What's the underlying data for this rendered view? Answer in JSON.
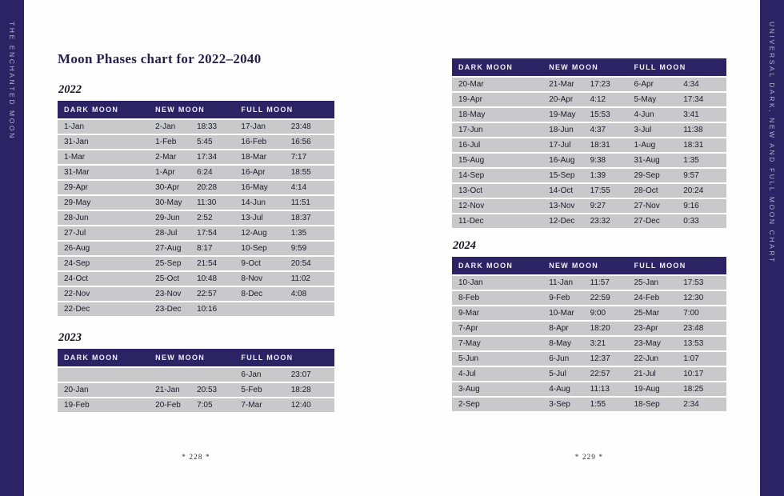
{
  "spines": {
    "left": "THE ENCHANTED MOON",
    "right": "UNIVERSAL DARK, NEW AND FULL MOON CHART"
  },
  "title": "Moon Phases chart for 2022–2040",
  "headers": {
    "dark": "DARK MOON",
    "new": "NEW MOON",
    "full": "FULL MOON"
  },
  "footers": {
    "left": "* 228 *",
    "right": "* 229 *"
  },
  "colors": {
    "navy": "#2b2363",
    "row_gray": "#c9c8ca",
    "ink": "#1c1c28"
  },
  "tables": [
    {
      "year": "2022",
      "rows": [
        [
          "1-Jan",
          "2-Jan",
          "18:33",
          "17-Jan",
          "23:48"
        ],
        [
          "31-Jan",
          "1-Feb",
          "5:45",
          "16-Feb",
          "16:56"
        ],
        [
          "1-Mar",
          "2-Mar",
          "17:34",
          "18-Mar",
          "7:17"
        ],
        [
          "31-Mar",
          "1-Apr",
          "6:24",
          "16-Apr",
          "18:55"
        ],
        [
          "29-Apr",
          "30-Apr",
          "20:28",
          "16-May",
          "4:14"
        ],
        [
          "29-May",
          "30-May",
          "11:30",
          "14-Jun",
          "11:51"
        ],
        [
          "28-Jun",
          "29-Jun",
          "2:52",
          "13-Jul",
          "18:37"
        ],
        [
          "27-Jul",
          "28-Jul",
          "17:54",
          "12-Aug",
          "1:35"
        ],
        [
          "26-Aug",
          "27-Aug",
          "8:17",
          "10-Sep",
          "9:59"
        ],
        [
          "24-Sep",
          "25-Sep",
          "21:54",
          "9-Oct",
          "20:54"
        ],
        [
          "24-Oct",
          "25-Oct",
          "10:48",
          "8-Nov",
          "11:02"
        ],
        [
          "22-Nov",
          "23-Nov",
          "22:57",
          "8-Dec",
          "4:08"
        ],
        [
          "22-Dec",
          "23-Dec",
          "10:16",
          "",
          ""
        ]
      ]
    },
    {
      "year": "2023",
      "rows": [
        [
          "",
          "",
          "",
          "6-Jan",
          "23:07"
        ],
        [
          "20-Jan",
          "21-Jan",
          "20:53",
          "5-Feb",
          "18:28"
        ],
        [
          "19-Feb",
          "20-Feb",
          "7:05",
          "7-Mar",
          "12:40"
        ]
      ]
    },
    {
      "year": "",
      "rows": [
        [
          "20-Mar",
          "21-Mar",
          "17:23",
          "6-Apr",
          "4:34"
        ],
        [
          "19-Apr",
          "20-Apr",
          "4:12",
          "5-May",
          "17:34"
        ],
        [
          "18-May",
          "19-May",
          "15:53",
          "4-Jun",
          "3:41"
        ],
        [
          "17-Jun",
          "18-Jun",
          "4:37",
          "3-Jul",
          "11:38"
        ],
        [
          "16-Jul",
          "17-Jul",
          "18:31",
          "1-Aug",
          "18:31"
        ],
        [
          "15-Aug",
          "16-Aug",
          "9:38",
          "31-Aug",
          "1:35"
        ],
        [
          "14-Sep",
          "15-Sep",
          "1:39",
          "29-Sep",
          "9:57"
        ],
        [
          "13-Oct",
          "14-Oct",
          "17:55",
          "28-Oct",
          "20:24"
        ],
        [
          "12-Nov",
          "13-Nov",
          "9:27",
          "27-Nov",
          "9:16"
        ],
        [
          "11-Dec",
          "12-Dec",
          "23:32",
          "27-Dec",
          "0:33"
        ]
      ]
    },
    {
      "year": "2024",
      "rows": [
        [
          "10-Jan",
          "11-Jan",
          "11:57",
          "25-Jan",
          "17:53"
        ],
        [
          "8-Feb",
          "9-Feb",
          "22:59",
          "24-Feb",
          "12:30"
        ],
        [
          "9-Mar",
          "10-Mar",
          "9:00",
          "25-Mar",
          "7:00"
        ],
        [
          "7-Apr",
          "8-Apr",
          "18:20",
          "23-Apr",
          "23:48"
        ],
        [
          "7-May",
          "8-May",
          "3:21",
          "23-May",
          "13:53"
        ],
        [
          "5-Jun",
          "6-Jun",
          "12:37",
          "22-Jun",
          "1:07"
        ],
        [
          "4-Jul",
          "5-Jul",
          "22:57",
          "21-Jul",
          "10:17"
        ],
        [
          "3-Aug",
          "4-Aug",
          "11:13",
          "19-Aug",
          "18:25"
        ],
        [
          "2-Sep",
          "3-Sep",
          "1:55",
          "18-Sep",
          "2:34"
        ]
      ]
    }
  ]
}
